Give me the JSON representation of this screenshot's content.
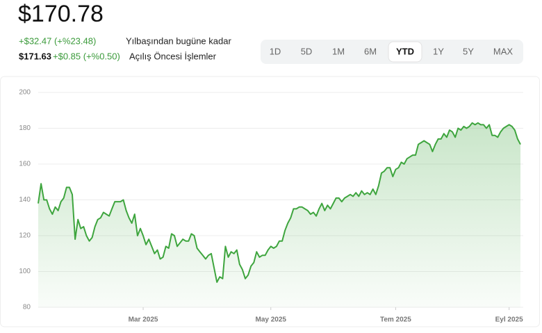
{
  "header": {
    "price": "$170.78",
    "change": "+$32.47 (+%23.48)",
    "change_label": "Yılbaşından bugüne kadar",
    "premarket_price": "$171.63",
    "premarket_change": "+$0.85 (+%0.50)",
    "premarket_label": "Açılış Öncesi İşlemler"
  },
  "ranges": {
    "buttons": [
      "1D",
      "5D",
      "1M",
      "6M",
      "YTD",
      "1Y",
      "5Y",
      "MAX"
    ],
    "selected": 4
  },
  "chart_data": {
    "type": "area",
    "color": "#3ea53e",
    "values": [
      138,
      149,
      140,
      140,
      135,
      132,
      136,
      134,
      139,
      141,
      147,
      147,
      143,
      118,
      129,
      124,
      125,
      120,
      117,
      119,
      125,
      129,
      130,
      133,
      132,
      131,
      135,
      139,
      139,
      139,
      140,
      134,
      130,
      127,
      132,
      120,
      124,
      120,
      115,
      118,
      114,
      110,
      112,
      107,
      108,
      114,
      113,
      121,
      120,
      114,
      116,
      118,
      117,
      117,
      121,
      120,
      113,
      111,
      109,
      107,
      109,
      110,
      102,
      94,
      97,
      96,
      114,
      108,
      111,
      110,
      112,
      104,
      101,
      96,
      98,
      103,
      105,
      111,
      108,
      109,
      109,
      112,
      114,
      113,
      114,
      117,
      117,
      123,
      127,
      130,
      135,
      135,
      136,
      136,
      135,
      134,
      132,
      133,
      131,
      135,
      138,
      134,
      137,
      135,
      138,
      141,
      141,
      139,
      141,
      142,
      143,
      142,
      144,
      142,
      145,
      143,
      144,
      143,
      146,
      143,
      148,
      155,
      156,
      158,
      158,
      153,
      157,
      158,
      161,
      160,
      163,
      164,
      165,
      165,
      171,
      172,
      173,
      172,
      171,
      167,
      171,
      174,
      174,
      177,
      175,
      179,
      178,
      175,
      180,
      179,
      181,
      180,
      181,
      183,
      182,
      183,
      182,
      182,
      180,
      182,
      176,
      176,
      175,
      178,
      180,
      181,
      182,
      181,
      179,
      174,
      171
    ],
    "xlim": [
      0,
      170
    ],
    "xticks": [
      {
        "value": 37,
        "label": "Mar 2025"
      },
      {
        "value": 82,
        "label": "May 2025"
      },
      {
        "value": 126,
        "label": "Tem 2025"
      },
      {
        "value": 166,
        "label": "Eyl 2025"
      }
    ],
    "ylim": [
      80,
      200
    ],
    "yticks": [
      80,
      100,
      120,
      140,
      160,
      180,
      200
    ],
    "grid": true
  }
}
